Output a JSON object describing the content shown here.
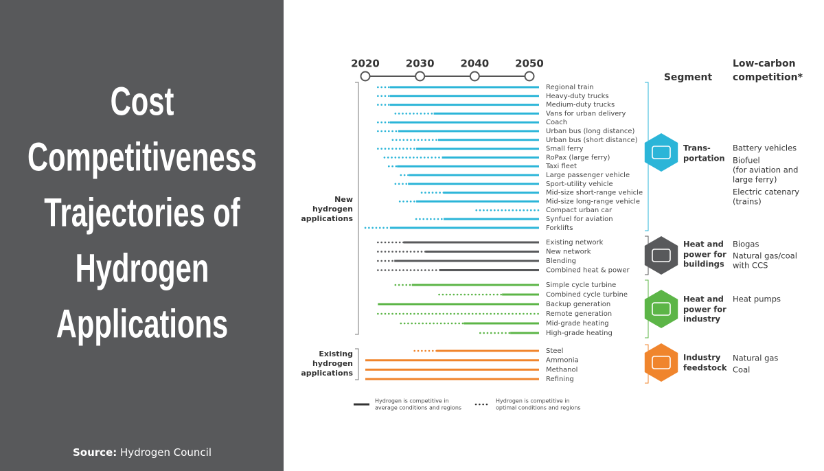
{
  "slide": {
    "title": [
      "Cost",
      "Competitiveness",
      "Trajectories of",
      "Hydrogen",
      "Applications"
    ],
    "source_label": "Source:",
    "source": "Hydrogen Council"
  },
  "chart_data": {
    "type": "timeline",
    "xlim": [
      2020,
      2050
    ],
    "xticks": [
      2020,
      2030,
      2040,
      2050
    ],
    "segment_header": "Segment",
    "competition_header": [
      "Low-carbon",
      "competition*"
    ],
    "groups": [
      {
        "label": [
          "New",
          "hydrogen",
          "applications"
        ]
      },
      {
        "label": [
          "Existing",
          "hydrogen",
          "applications"
        ]
      }
    ],
    "segments": [
      {
        "label": [
          "Trans-",
          "portation"
        ],
        "color": "#2bb5d8",
        "competition": [
          [
            "Battery vehicles"
          ],
          [
            "Biofuel",
            "(for aviation and",
            "large ferry)"
          ],
          [
            "Electric catenary",
            "(trains)"
          ]
        ],
        "categories": [
          "Regional train",
          "Heavy-duty trucks",
          "Medium-duty trucks",
          "Vans for urban delivery",
          "Coach",
          "Urban bus (long distance)",
          "Urban bus (short distance)",
          "Small ferry",
          "RoPax (large ferry)",
          "Taxi fleet",
          "Large passenger vehicle",
          "Sport-utility vehicle",
          "Mid-size short-range vehicle",
          "Mid-size long-range vehicle",
          "Compact urban car",
          "Synfuel for aviation",
          "Forklifts"
        ],
        "optimal": [
          2022.3,
          2022.3,
          2022.3,
          2025.5,
          2022.3,
          2022.3,
          2025,
          2022.3,
          2023.5,
          2024.3,
          2026.5,
          2025.5,
          2030.3,
          2026.3,
          2040.3,
          2029.3,
          2020
        ],
        "average": [
          2024.5,
          2024.5,
          2024.5,
          2032.5,
          2024.5,
          2026,
          2033.3,
          2029.3,
          2034,
          2025.8,
          2028,
          2027.8,
          2034.3,
          2029.3,
          null,
          2034.3,
          2024.5
        ]
      },
      {
        "label": [
          "Heat and",
          "power for",
          "buildings"
        ],
        "color": "#58595b",
        "competition": [
          [
            "Biogas"
          ],
          [
            "Natural gas/coal",
            "with CCS"
          ]
        ],
        "categories": [
          "Existing network",
          "New network",
          "Blending",
          "Combined heat & power"
        ],
        "optimal": [
          2022.3,
          2022.3,
          2022.3,
          2022.3
        ],
        "average": [
          2027,
          2031,
          2025.3,
          2033.5
        ]
      },
      {
        "label": [
          "Heat and",
          "power for",
          "industry"
        ],
        "color": "#5cb547",
        "competition": [
          [
            "Heat pumps"
          ]
        ],
        "categories": [
          "Simple cycle turbine",
          "Combined cycle turbine",
          "Backup generation",
          "Remote generation",
          "Mid-grade heating",
          "High-grade heating"
        ],
        "optimal": [
          2025.5,
          2033.5,
          null,
          2022.3,
          2026.5,
          2041
        ],
        "average": [
          2028.5,
          2045,
          2022.3,
          null,
          2038,
          2046.5
        ]
      },
      {
        "label": [
          "Industry",
          "feedstock"
        ],
        "color": "#f0852d",
        "competition": [
          [
            "Natural gas"
          ],
          [
            "Coal"
          ]
        ],
        "categories": [
          "Steel",
          "Ammonia",
          "Methanol",
          "Refining"
        ],
        "optimal": [
          2029,
          null,
          null,
          null
        ],
        "average": [
          2033,
          2020,
          2020,
          2020
        ]
      }
    ],
    "legend": {
      "average": [
        "Hydrogen is competitive in",
        "average conditions and regions"
      ],
      "optimal": [
        "Hydrogen is competitive in",
        "optimal conditions and regions"
      ]
    }
  }
}
